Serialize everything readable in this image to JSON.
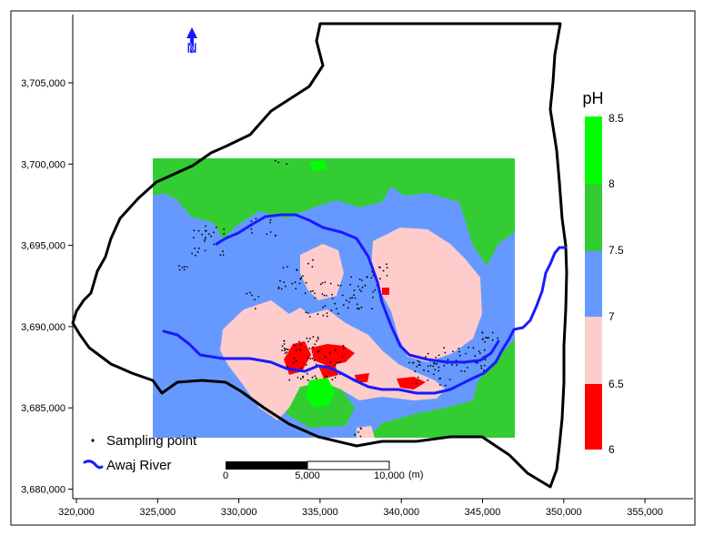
{
  "north_arrow": {
    "label": "N"
  },
  "legend": {
    "title": "pH",
    "classes": [
      {
        "label": "8.5",
        "color": "#00ff00"
      },
      {
        "label": "8",
        "color": "#33cc33"
      },
      {
        "label": "7.5",
        "color": "#6699ff"
      },
      {
        "label": "7",
        "color": "#ffcccc"
      },
      {
        "label": "6.5",
        "color": "#ff0000"
      },
      {
        "label": "6",
        "color": "#ff0000"
      }
    ],
    "sampling_point_label": "Sampling point",
    "river_label": "Awaj River"
  },
  "scale_bar": {
    "labels": [
      "0",
      "5,000",
      "10,000"
    ],
    "unit": "(m)"
  },
  "x_axis": {
    "ticks": [
      "320,000",
      "325,000",
      "330,000",
      "335,000",
      "340,000",
      "345,000",
      "350,000",
      "355,000"
    ]
  },
  "y_axis": {
    "ticks": [
      "3,705,000",
      "3,700,000",
      "3,695,000",
      "3,690,000",
      "3,685,000",
      "3,680,000"
    ]
  },
  "colors": {
    "boundary": "#000000",
    "river": "#1a1aff",
    "class_8_to_8_5": "#00ff00",
    "class_7_5_to_8": "#33cc33",
    "class_7_to_7_5": "#6699ff",
    "class_6_5_to_7": "#ffcccc",
    "class_6_to_6_5": "#ff0000"
  }
}
